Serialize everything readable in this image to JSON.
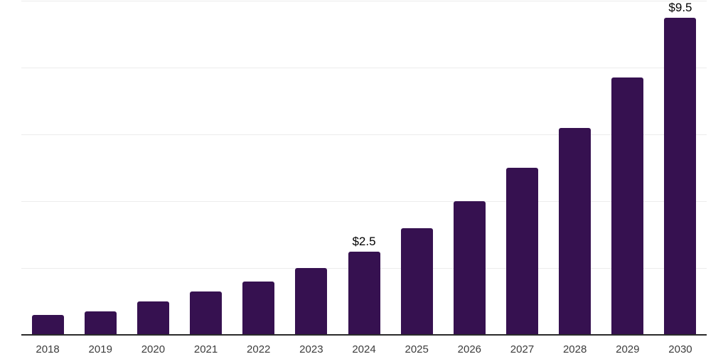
{
  "chart_data": {
    "type": "bar",
    "categories": [
      "2018",
      "2019",
      "2020",
      "2021",
      "2022",
      "2023",
      "2024",
      "2025",
      "2026",
      "2027",
      "2028",
      "2029",
      "2030"
    ],
    "values": [
      0.6,
      0.7,
      1.0,
      1.3,
      1.6,
      2.0,
      2.5,
      3.2,
      4.0,
      5.0,
      6.2,
      7.7,
      9.5
    ],
    "data_labels": {
      "2024": "$2.5",
      "2030": "$9.5"
    },
    "ylim": [
      0,
      10
    ],
    "gridlines": [
      2,
      4,
      6,
      8,
      10
    ],
    "grid": "horizontal",
    "legend": "none",
    "bar_color": "#361150",
    "axis_line_color": "#2b2b2b",
    "gridline_color": "#ececec",
    "tick_label_color": "#3c3c3c",
    "data_label_color": "#000000"
  }
}
